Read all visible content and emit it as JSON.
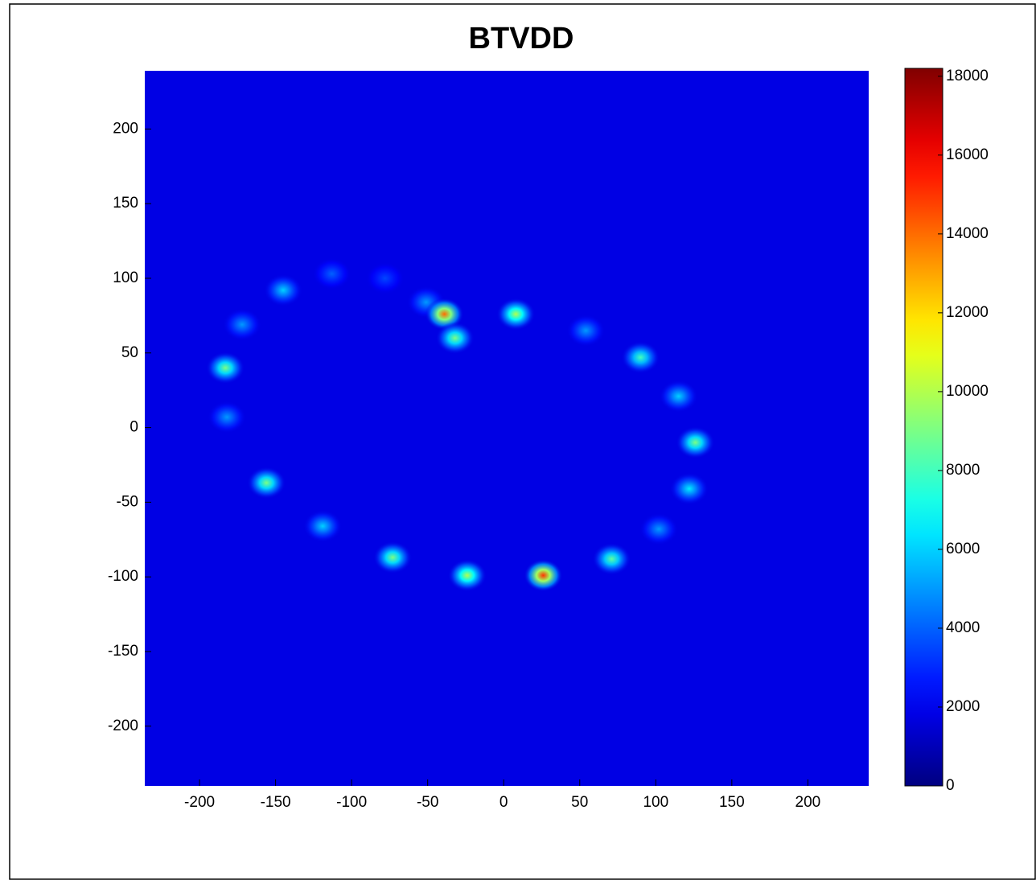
{
  "chart_data": {
    "type": "scatter",
    "title": "BTVDD",
    "colormap": "jet",
    "background_value": 1800,
    "x": [
      -145,
      -113,
      -78,
      -51,
      -39,
      -32,
      8,
      54,
      90,
      115,
      126,
      122,
      102,
      71,
      26,
      -24,
      -73,
      -119,
      -156,
      -182,
      -183,
      -172
    ],
    "y": [
      92,
      103,
      100,
      84,
      76,
      60,
      76,
      65,
      47,
      21,
      -10,
      -41,
      -68,
      -88,
      -99,
      -99,
      -87,
      -66,
      -37,
      7,
      40,
      69
    ],
    "values": [
      6000,
      4000,
      3500,
      5000,
      14000,
      9000,
      10000,
      5000,
      8000,
      6000,
      9000,
      6500,
      5000,
      8500,
      15000,
      10000,
      9000,
      6000,
      9000,
      5000,
      9000,
      5000
    ],
    "xlim": [
      -236,
      240
    ],
    "ylim": [
      -240,
      239
    ],
    "xticks": [
      -200,
      -150,
      -100,
      -50,
      0,
      50,
      100,
      150,
      200
    ],
    "yticks": [
      -200,
      -150,
      -100,
      -50,
      0,
      50,
      100,
      150,
      200
    ],
    "clim": [
      0,
      18200
    ],
    "cticks": [
      0,
      2000,
      4000,
      6000,
      8000,
      10000,
      12000,
      14000,
      16000,
      18000
    ]
  }
}
